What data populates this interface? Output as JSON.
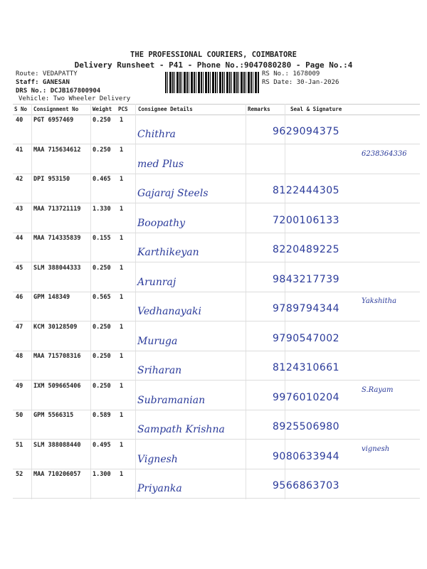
{
  "header": {
    "company": "THE PROFESSIONAL COURIERS, COIMBATORE",
    "subtitle": "Delivery Runsheet - P41 - Phone No.:9047080280 - Page No.:4",
    "route": "Route: VEDAPATTY",
    "staff": "Staff: GANESAN",
    "drs_no": "DRS No.: DCJB167800904",
    "vehicle": "Vehicle: Two Wheeler Delivery",
    "rs_no": "RS No.: 1678009",
    "rs_date": "RS Date: 30-Jan-2026"
  },
  "columns": [
    "S No",
    "Consignment No",
    "Weight",
    "PCS",
    "Consignee Details",
    "Remarks",
    "Seal & Signature"
  ],
  "rows": [
    {
      "sno": "40",
      "cn": "PGT 6957469",
      "weight": "0.250",
      "pcs": "1",
      "name": "Chithra",
      "phone": "9629094375",
      "sig": ""
    },
    {
      "sno": "41",
      "cn": "MAA 715634612",
      "weight": "0.250",
      "pcs": "1",
      "name": "med Plus",
      "phone": "",
      "sig": "6238364336"
    },
    {
      "sno": "42",
      "cn": "DPI 953150",
      "weight": "0.465",
      "pcs": "1",
      "name": "Gajaraj Steels",
      "phone": "8122444305",
      "sig": ""
    },
    {
      "sno": "43",
      "cn": "MAA 713721119",
      "weight": "1.330",
      "pcs": "1",
      "name": "Boopathy",
      "phone": "7200106133",
      "sig": ""
    },
    {
      "sno": "44",
      "cn": "MAA 714335839",
      "weight": "0.155",
      "pcs": "1",
      "name": "Karthikeyan",
      "phone": "8220489225",
      "sig": ""
    },
    {
      "sno": "45",
      "cn": "SLM 388044333",
      "weight": "0.250",
      "pcs": "1",
      "name": "Arunraj",
      "phone": "9843217739",
      "sig": ""
    },
    {
      "sno": "46",
      "cn": "GPM 148349",
      "weight": "0.565",
      "pcs": "1",
      "name": "Vedhanayaki",
      "phone": "9789794344",
      "sig": "Yakshitha"
    },
    {
      "sno": "47",
      "cn": "KCM 30128509",
      "weight": "0.250",
      "pcs": "1",
      "name": "Muruga",
      "phone": "9790547002",
      "sig": ""
    },
    {
      "sno": "48",
      "cn": "MAA 715708316",
      "weight": "0.250",
      "pcs": "1",
      "name": "Sriharan",
      "phone": "8124310661",
      "sig": ""
    },
    {
      "sno": "49",
      "cn": "IXM 509665406",
      "weight": "0.250",
      "pcs": "1",
      "name": "Subramanian",
      "phone": "9976010204",
      "sig": "S.Rayam"
    },
    {
      "sno": "50",
      "cn": "GPM 5566315",
      "weight": "0.589",
      "pcs": "1",
      "name": "Sampath Krishna",
      "phone": "8925506980",
      "sig": ""
    },
    {
      "sno": "51",
      "cn": "SLM 388088440",
      "weight": "0.495",
      "pcs": "1",
      "name": "Vignesh",
      "phone": "9080633944",
      "sig": "vignesh"
    },
    {
      "sno": "52",
      "cn": "MAA 710206057",
      "weight": "1.300",
      "pcs": "1",
      "name": "Priyanka",
      "phone": "9566863703",
      "sig": ""
    }
  ]
}
